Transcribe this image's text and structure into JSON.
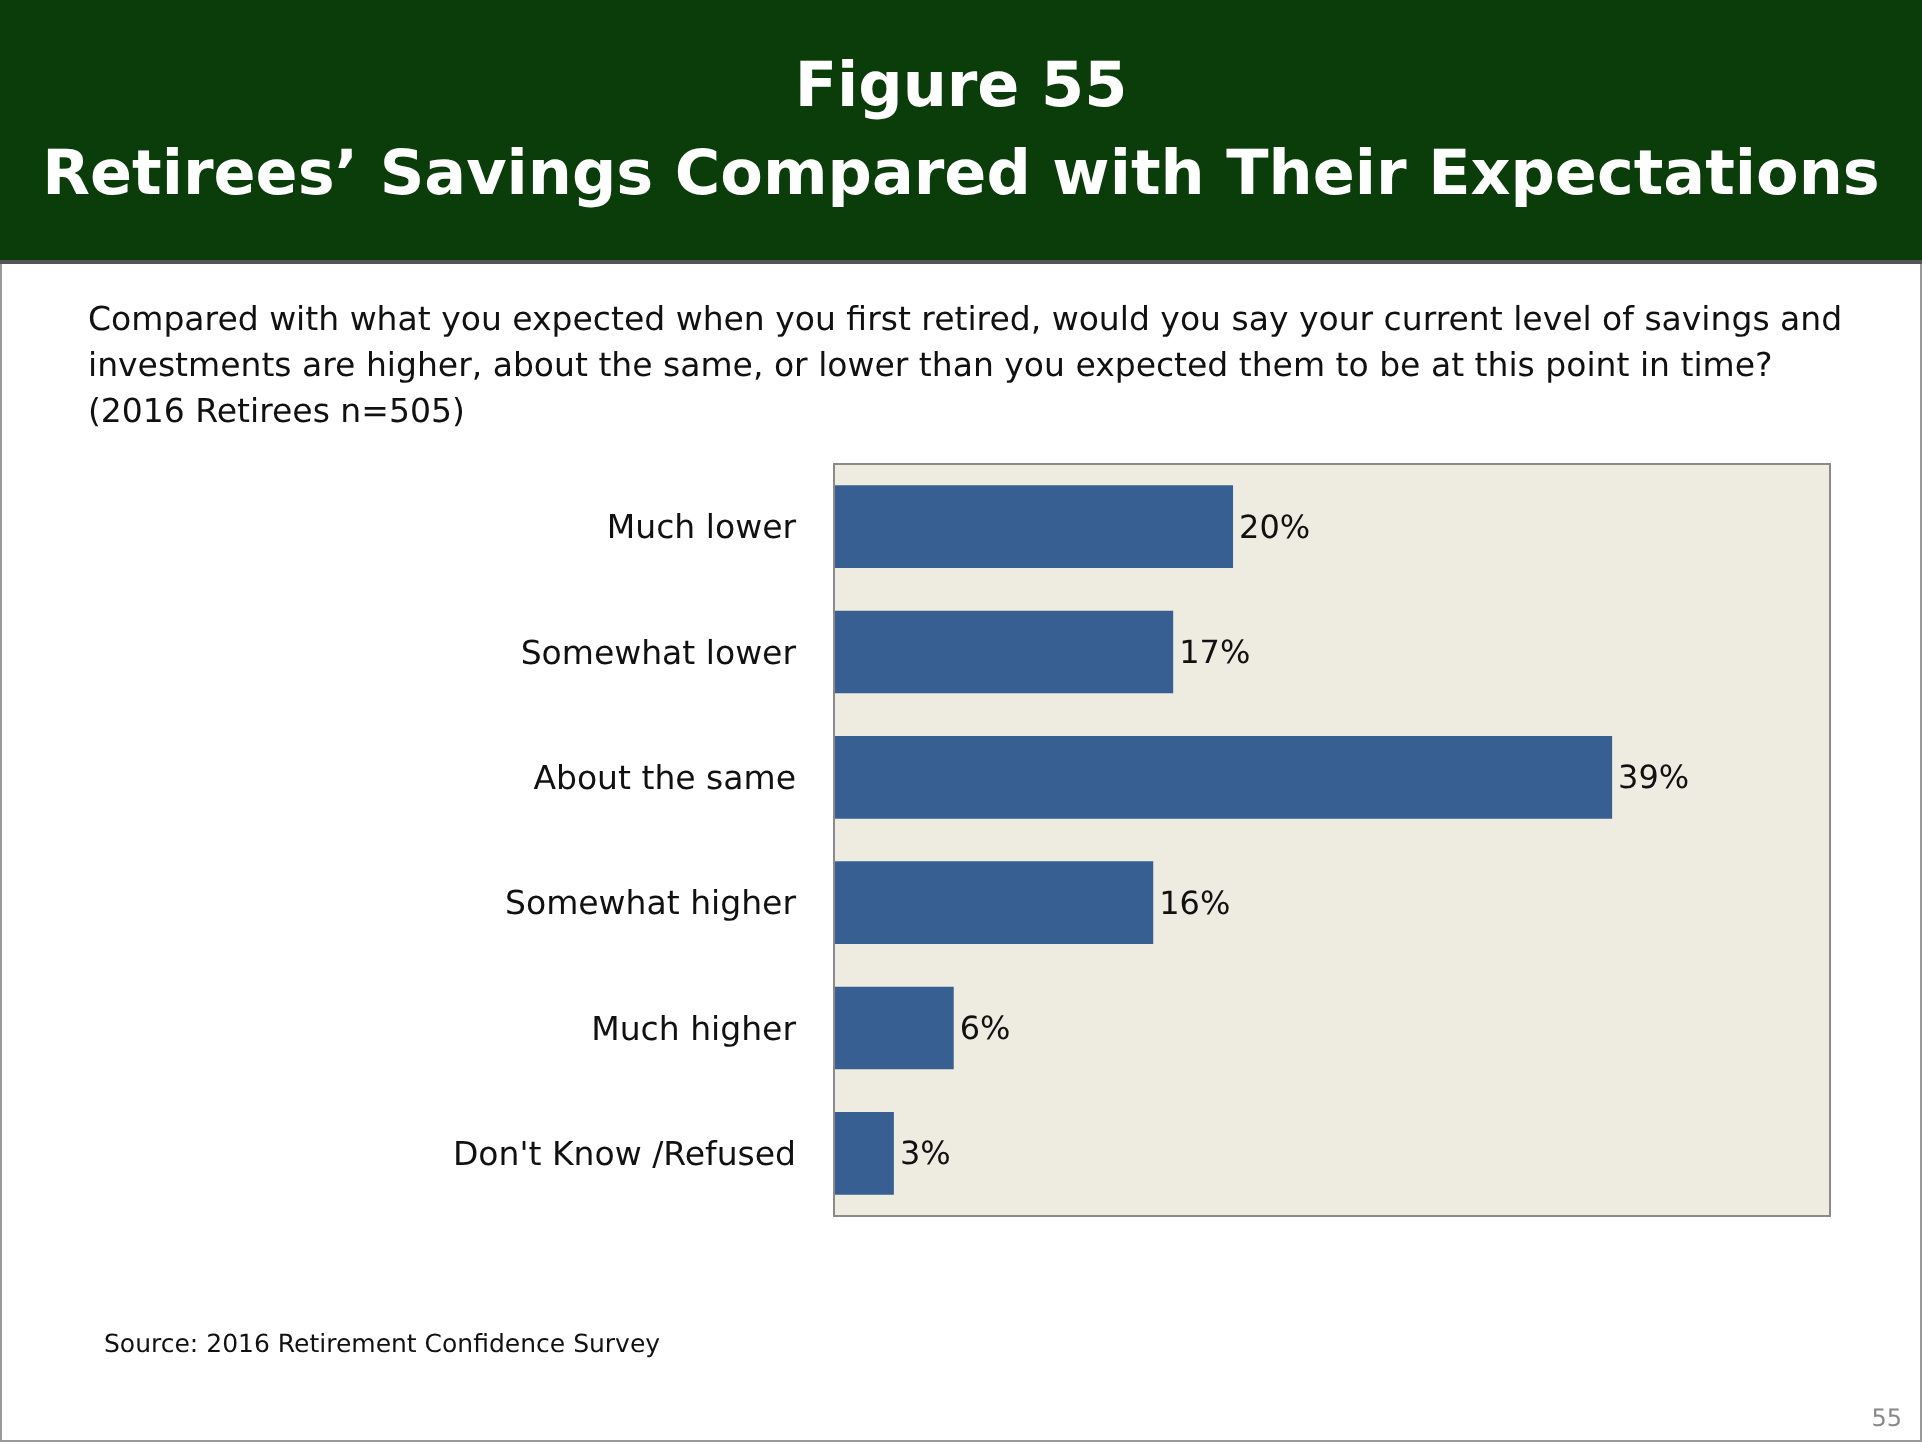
{
  "chart_data": {
    "type": "bar",
    "orientation": "horizontal",
    "title": "Figure 55\nRetirees’ Savings Compared with Their Expectations",
    "subtitle": "Compared with what you expected when you first retired, would you say your current level of savings and investments are higher, about the same, or lower than you expected them to be at this point in time?  (2016 Retirees n=505)",
    "categories": [
      "Much lower",
      "Somewhat lower",
      "About the same",
      "Somewhat higher",
      "Much higher",
      "Don't Know /Refused"
    ],
    "values": [
      20,
      17,
      39,
      16,
      6,
      3
    ],
    "value_labels": [
      "20%",
      "17%",
      "39%",
      "16%",
      "6%",
      "3%"
    ],
    "color": "#375f91",
    "grid": false,
    "annotations": [
      "Source:  2016 Retirement Confidence Survey",
      "55"
    ]
  }
}
